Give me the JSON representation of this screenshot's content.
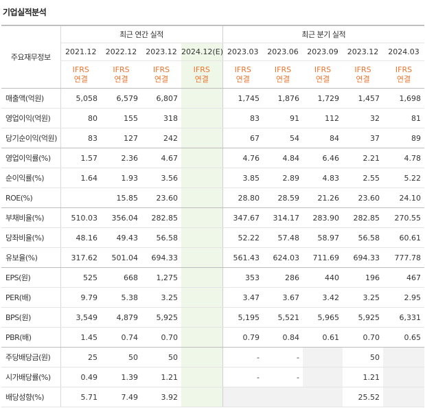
{
  "page_title": "기업실적분석",
  "header": {
    "corner_label": "주요재무정보",
    "annual_group": "최근 연간 실적",
    "quarterly_group": "최근 분기 실적",
    "periods": [
      "2021.12",
      "2022.12",
      "2023.12",
      "2024.12(E)",
      "2023.03",
      "2023.06",
      "2023.09",
      "2023.12",
      "2024.03"
    ],
    "basis_line1": "IFRS",
    "basis_line2": "연결"
  },
  "rows": [
    {
      "label": "매출액(억원)",
      "values": [
        "5,058",
        "6,579",
        "6,807",
        "",
        "1,745",
        "1,876",
        "1,729",
        "1,457",
        "1,698"
      ]
    },
    {
      "label": "영업이익(억원)",
      "values": [
        "80",
        "155",
        "318",
        "",
        "83",
        "91",
        "112",
        "32",
        "81"
      ]
    },
    {
      "label": "당기순이익(억원)",
      "values": [
        "83",
        "127",
        "242",
        "",
        "67",
        "54",
        "84",
        "37",
        "89"
      ]
    },
    {
      "label": "영업이익률(%)",
      "values": [
        "1.57",
        "2.36",
        "4.67",
        "",
        "4.76",
        "4.84",
        "6.46",
        "2.21",
        "4.78"
      ]
    },
    {
      "label": "순이익률(%)",
      "values": [
        "1.64",
        "1.93",
        "3.56",
        "",
        "3.85",
        "2.89",
        "4.83",
        "2.55",
        "5.22"
      ]
    },
    {
      "label": "ROE(%)",
      "values": [
        "",
        "15.85",
        "23.60",
        "",
        "28.80",
        "28.59",
        "21.26",
        "23.60",
        "24.10"
      ]
    },
    {
      "label": "부채비율(%)",
      "values": [
        "510.03",
        "356.04",
        "282.85",
        "",
        "347.67",
        "314.17",
        "283.90",
        "282.85",
        "270.55"
      ]
    },
    {
      "label": "당좌비율(%)",
      "values": [
        "48.16",
        "49.43",
        "56.58",
        "",
        "52.22",
        "57.48",
        "58.97",
        "56.58",
        "60.61"
      ]
    },
    {
      "label": "유보율(%)",
      "values": [
        "317.62",
        "501.04",
        "694.33",
        "",
        "561.43",
        "624.03",
        "711.69",
        "694.33",
        "777.78"
      ]
    },
    {
      "label": "EPS(원)",
      "values": [
        "525",
        "668",
        "1,275",
        "",
        "353",
        "286",
        "440",
        "196",
        "467"
      ]
    },
    {
      "label": "PER(배)",
      "values": [
        "9.79",
        "5.38",
        "3.25",
        "",
        "3.47",
        "3.67",
        "3.42",
        "3.25",
        "2.95"
      ]
    },
    {
      "label": "BPS(원)",
      "values": [
        "3,549",
        "4,879",
        "5,925",
        "",
        "5,195",
        "5,521",
        "5,965",
        "5,925",
        "6,331"
      ]
    },
    {
      "label": "PBR(배)",
      "values": [
        "1.45",
        "0.74",
        "0.70",
        "",
        "0.79",
        "0.84",
        "0.61",
        "0.70",
        "0.65"
      ]
    },
    {
      "label": "주당배당금(원)",
      "values": [
        "25",
        "50",
        "50",
        "",
        "-",
        "-",
        "",
        "50",
        ""
      ]
    },
    {
      "label": "시가배당률(%)",
      "values": [
        "0.49",
        "1.39",
        "1.21",
        "",
        "-",
        "-",
        "",
        "1.21",
        ""
      ]
    },
    {
      "label": "배당성향(%)",
      "values": [
        "5.71",
        "7.49",
        "3.92",
        "",
        "",
        "",
        "",
        "25.52",
        ""
      ]
    }
  ]
}
